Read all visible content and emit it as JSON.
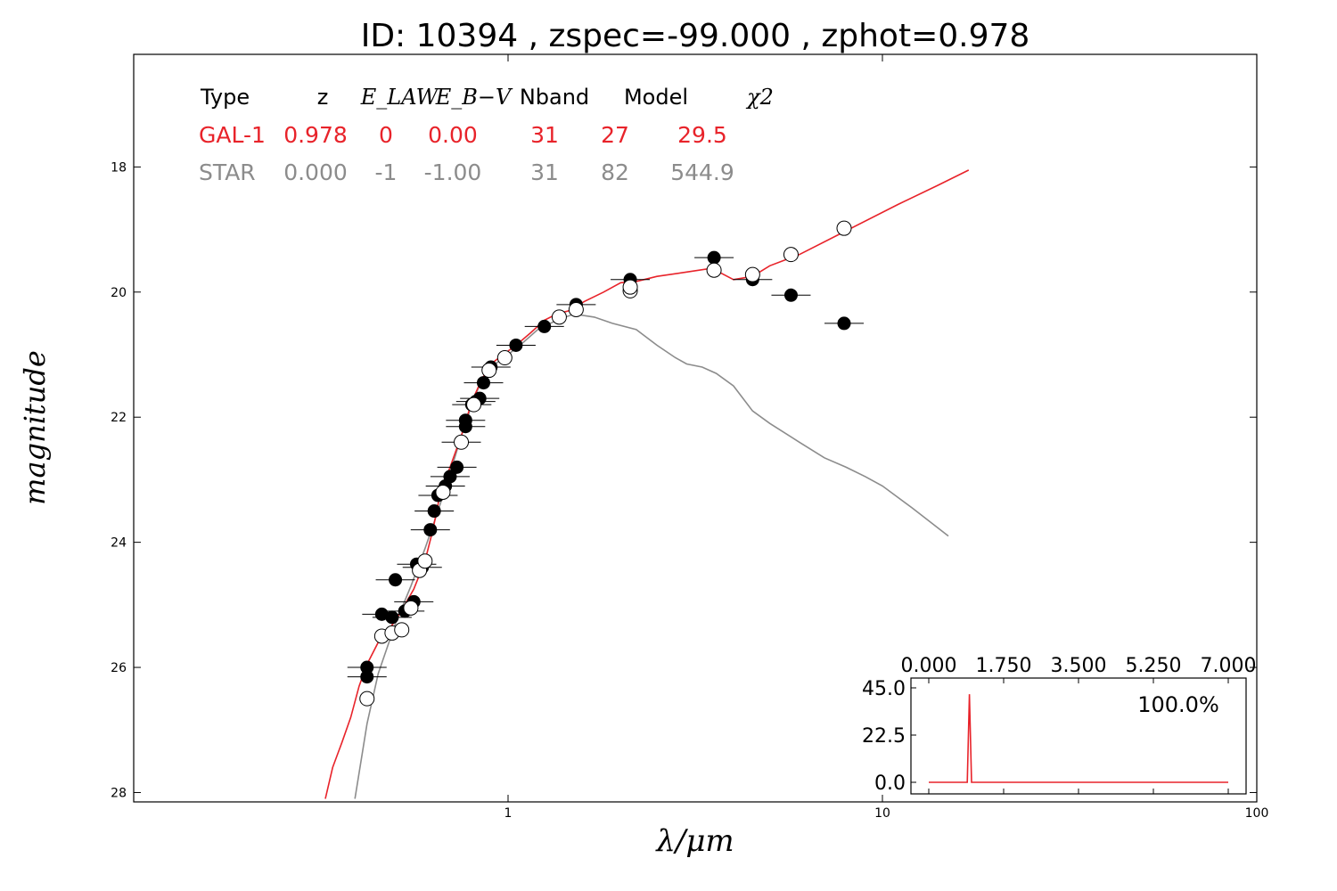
{
  "title": "ID:  10394 , zspec=-99.000 , zphot=0.978",
  "colors": {
    "galaxy": "#e8232a",
    "star": "#8c8c8c",
    "text": "#000000"
  },
  "chart_data": {
    "type": "scatter",
    "x_scale": "log",
    "xlim": [
      0.1,
      100
    ],
    "ylim": [
      28.15,
      16.2
    ],
    "y_inverted": true,
    "xlabel": "λ/μm",
    "ylabel": "magnitude",
    "x_ticks": [
      1,
      10,
      100
    ],
    "y_ticks": [
      18,
      20,
      22,
      24,
      26,
      28
    ],
    "fit_table": {
      "headers": [
        "Type",
        "z",
        "E_LAW",
        "E_B−V",
        "Nband",
        "Model",
        "χ2"
      ],
      "rows": [
        {
          "name": "GAL-1",
          "values": [
            "GAL-1",
            "0.978",
            "0",
            "0.00",
            "31",
            "27",
            "29.5"
          ],
          "color": "#e8232a"
        },
        {
          "name": "STAR",
          "values": [
            "STAR",
            "0.000",
            "-1",
            "-1.00",
            "31",
            "82",
            "544.9"
          ],
          "color": "#8c8c8c"
        }
      ]
    },
    "series": [
      {
        "name": "GAL-1",
        "kind": "line",
        "color": "#e8232a",
        "points": [
          [
            0.325,
            28.1
          ],
          [
            0.34,
            27.6
          ],
          [
            0.36,
            27.2
          ],
          [
            0.38,
            26.8
          ],
          [
            0.4,
            26.3
          ],
          [
            0.42,
            25.95
          ],
          [
            0.45,
            25.6
          ],
          [
            0.48,
            25.4
          ],
          [
            0.5,
            25.25
          ],
          [
            0.53,
            25.0
          ],
          [
            0.56,
            24.75
          ],
          [
            0.6,
            24.3
          ],
          [
            0.63,
            23.8
          ],
          [
            0.66,
            23.2
          ],
          [
            0.7,
            22.8
          ],
          [
            0.75,
            22.3
          ],
          [
            0.8,
            21.75
          ],
          [
            0.85,
            21.4
          ],
          [
            0.9,
            21.15
          ],
          [
            0.97,
            21.0
          ],
          [
            1.05,
            20.85
          ],
          [
            1.15,
            20.65
          ],
          [
            1.25,
            20.45
          ],
          [
            1.35,
            20.35
          ],
          [
            1.45,
            20.3
          ],
          [
            1.6,
            20.15
          ],
          [
            1.8,
            20.0
          ],
          [
            2.0,
            19.85
          ],
          [
            2.2,
            19.83
          ],
          [
            2.5,
            19.75
          ],
          [
            3.0,
            19.68
          ],
          [
            3.5,
            19.62
          ],
          [
            4.0,
            19.8
          ],
          [
            4.5,
            19.75
          ],
          [
            5.0,
            19.58
          ],
          [
            6.0,
            19.4
          ],
          [
            8.0,
            19.02
          ],
          [
            11.0,
            18.6
          ],
          [
            14.0,
            18.3
          ],
          [
            17.0,
            18.05
          ]
        ]
      },
      {
        "name": "STAR",
        "kind": "line",
        "color": "#8c8c8c",
        "points": [
          [
            0.39,
            28.1
          ],
          [
            0.42,
            26.9
          ],
          [
            0.45,
            26.1
          ],
          [
            0.5,
            25.3
          ],
          [
            0.55,
            24.7
          ],
          [
            0.6,
            24.1
          ],
          [
            0.65,
            23.5
          ],
          [
            0.7,
            22.9
          ],
          [
            0.75,
            22.3
          ],
          [
            0.8,
            21.8
          ],
          [
            0.85,
            21.4
          ],
          [
            0.9,
            21.2
          ],
          [
            1.0,
            21.0
          ],
          [
            1.1,
            20.8
          ],
          [
            1.2,
            20.6
          ],
          [
            1.35,
            20.45
          ],
          [
            1.5,
            20.35
          ],
          [
            1.7,
            20.4
          ],
          [
            1.9,
            20.5
          ],
          [
            2.2,
            20.6
          ],
          [
            2.5,
            20.85
          ],
          [
            2.8,
            21.05
          ],
          [
            3.0,
            21.15
          ],
          [
            3.3,
            21.2
          ],
          [
            3.6,
            21.3
          ],
          [
            4.0,
            21.5
          ],
          [
            4.5,
            21.9
          ],
          [
            5.0,
            22.1
          ],
          [
            6.0,
            22.4
          ],
          [
            7.0,
            22.65
          ],
          [
            8.0,
            22.8
          ],
          [
            9.0,
            22.95
          ],
          [
            10.0,
            23.1
          ],
          [
            12.0,
            23.45
          ],
          [
            15.0,
            23.9
          ]
        ]
      },
      {
        "name": "Observed",
        "kind": "points",
        "color": "#000000",
        "points": [
          [
            0.42,
            26.0
          ],
          [
            0.42,
            26.15
          ],
          [
            0.46,
            25.15
          ],
          [
            0.49,
            25.2
          ],
          [
            0.5,
            24.6
          ],
          [
            0.53,
            25.1
          ],
          [
            0.56,
            24.95
          ],
          [
            0.57,
            24.35
          ],
          [
            0.59,
            24.4
          ],
          [
            0.62,
            23.8
          ],
          [
            0.635,
            23.5
          ],
          [
            0.65,
            23.25
          ],
          [
            0.68,
            23.1
          ],
          [
            0.7,
            22.95
          ],
          [
            0.73,
            22.8
          ],
          [
            0.75,
            22.4
          ],
          [
            0.77,
            22.05
          ],
          [
            0.77,
            22.15
          ],
          [
            0.8,
            21.8
          ],
          [
            0.82,
            21.75
          ],
          [
            0.84,
            21.7
          ],
          [
            0.86,
            21.45
          ],
          [
            0.9,
            21.2
          ],
          [
            1.05,
            20.85
          ],
          [
            1.25,
            20.55
          ],
          [
            1.52,
            20.2
          ],
          [
            2.12,
            19.8
          ],
          [
            3.55,
            19.45
          ],
          [
            4.5,
            19.8
          ],
          [
            5.7,
            20.05
          ],
          [
            7.9,
            20.5
          ]
        ]
      },
      {
        "name": "Model magnitudes",
        "kind": "open-points",
        "color": "#ffffff",
        "points": [
          [
            0.42,
            26.5
          ],
          [
            0.46,
            25.5
          ],
          [
            0.49,
            25.45
          ],
          [
            0.52,
            25.4
          ],
          [
            0.55,
            25.05
          ],
          [
            0.58,
            24.45
          ],
          [
            0.6,
            24.3
          ],
          [
            0.67,
            23.2
          ],
          [
            0.75,
            22.4
          ],
          [
            0.81,
            21.8
          ],
          [
            0.89,
            21.25
          ],
          [
            0.98,
            21.05
          ],
          [
            1.37,
            20.4
          ],
          [
            1.52,
            20.28
          ],
          [
            2.12,
            19.98
          ],
          [
            2.12,
            19.92
          ],
          [
            3.55,
            19.65
          ],
          [
            4.5,
            19.72
          ],
          [
            5.7,
            19.4
          ],
          [
            7.9,
            18.98
          ]
        ]
      }
    ],
    "inset": {
      "type": "line",
      "xlim": [
        0.0,
        7.0
      ],
      "ylim": [
        -3,
        48
      ],
      "x_ticks": [
        "0.000",
        "1.750",
        "3.500",
        "5.250",
        "7.000"
      ],
      "y_ticks": [
        "45.0",
        "22.5",
        "0.0"
      ],
      "annotation": "100.0%",
      "color": "#e8232a",
      "points": [
        [
          0.0,
          0
        ],
        [
          0.9,
          0
        ],
        [
          0.95,
          42
        ],
        [
          1.0,
          0
        ],
        [
          7.0,
          0
        ]
      ]
    }
  }
}
